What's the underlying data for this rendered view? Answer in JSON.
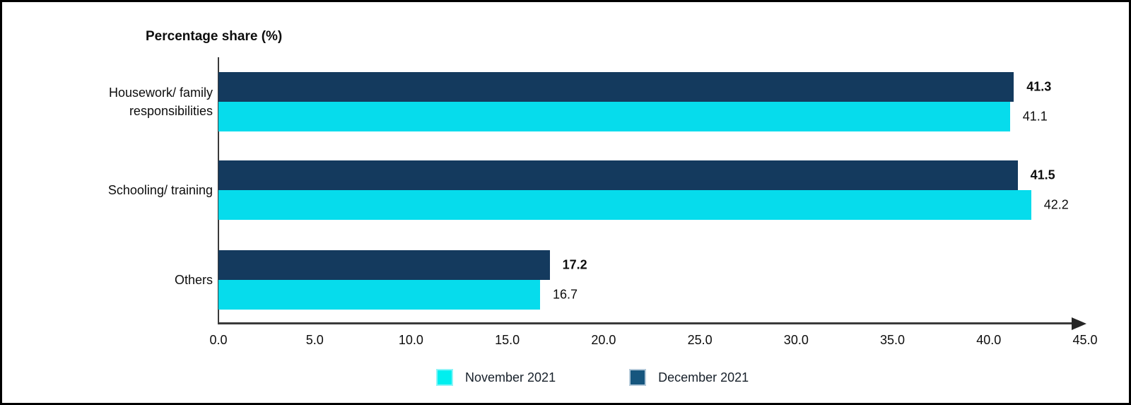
{
  "frame": {
    "background": "#ffffff",
    "border_color": "#000000"
  },
  "chart_data": {
    "type": "bar",
    "orientation": "horizontal",
    "title": "Percentage share (%)",
    "categories": [
      "Housework/ family responsibilities",
      "Schooling/ training",
      "Others"
    ],
    "series": [
      {
        "name": "December 2021",
        "color": "#143a5e",
        "values": [
          41.3,
          41.5,
          17.2
        ],
        "value_labels": [
          "41.3",
          "41.5",
          "17.2"
        ],
        "value_labels_bold": true,
        "row": "top"
      },
      {
        "name": "November 2021",
        "color": "#06dcec",
        "values": [
          41.1,
          42.2,
          16.7
        ],
        "value_labels": [
          "41.1",
          "42.2",
          "16.7"
        ],
        "value_labels_bold": false,
        "row": "bottom"
      }
    ],
    "xlim": [
      0,
      45
    ],
    "x_tick_step": 5,
    "x_tick_labels": [
      "0.0",
      "5.0",
      "10.0",
      "15.0",
      "20.0",
      "25.0",
      "30.0",
      "35.0",
      "40.0",
      "45.0"
    ],
    "grid": false,
    "value_labels_shown": true,
    "axis_color": "#3a3a3a",
    "legend": {
      "position": "bottom",
      "entries": [
        {
          "label": "November 2021",
          "swatch_color": "#00efef",
          "swatch_border": "#8ef5f8"
        },
        {
          "label": "December 2021",
          "swatch_color": "#16567e",
          "swatch_border": "#b3c9d9"
        }
      ]
    }
  }
}
